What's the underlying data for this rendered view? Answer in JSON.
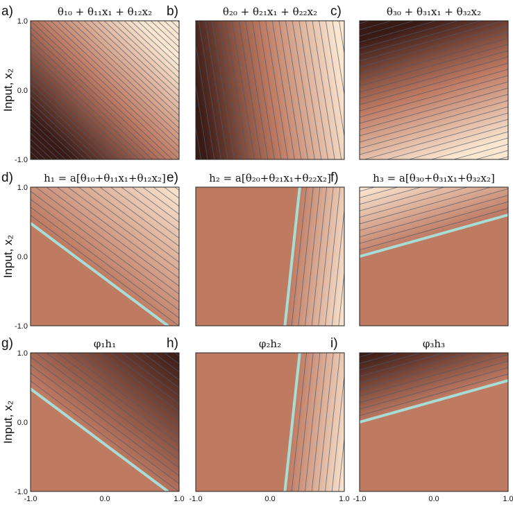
{
  "figure": {
    "y_axis_label": "Input, x₂",
    "tick_labels": {
      "neg": "-1.0",
      "zero": "0.0",
      "pos": "1.0"
    },
    "colors": {
      "dark": "#3a1a14",
      "mid": "#bf7a62",
      "light": "#fbe6d0",
      "contour": "#4a5a70",
      "boundary": "#a8ddd6"
    },
    "panels": [
      {
        "label": "a)",
        "title": "θ₁₀ + θ₁₁x₁ + θ₁₂x₂",
        "a": 1.0,
        "b": 1.0,
        "mode": "linear"
      },
      {
        "label": "b)",
        "title": "θ₂₀ + θ₂₁x₁ + θ₂₂x₂",
        "a": 1.0,
        "b": 0.15,
        "mode": "linear"
      },
      {
        "label": "c)",
        "title": "θ₃₀ + θ₃₁x₁ + θ₃₂x₂",
        "a": 0.3,
        "b": -1.0,
        "mode": "linear"
      },
      {
        "label": "d)",
        "title": "h₁ = a[θ₁₀+θ₁₁x₁+θ₁₂x₂]",
        "a": 1.0,
        "b": 1.25,
        "c": 0.4,
        "mode": "relu"
      },
      {
        "label": "e)",
        "title": "h₂ = a[θ₂₀+θ₂₁x₁+θ₂₂x₂]",
        "a": 1.0,
        "b": -0.1,
        "c": -0.3,
        "mode": "relu"
      },
      {
        "label": "f)",
        "title": "h₃ = a[θ₃₀+θ₃₁x₁+θ₃₂x₂]",
        "a": -0.3,
        "b": 1.0,
        "c": -0.3,
        "mode": "relu"
      },
      {
        "label": "g)",
        "title": "φ₁h₁",
        "a": 1.0,
        "b": 1.25,
        "c": 0.4,
        "mode": "relu",
        "sign": -1
      },
      {
        "label": "h)",
        "title": "φ₂h₂",
        "a": 1.0,
        "b": -0.1,
        "c": -0.3,
        "mode": "relu",
        "sign": 1
      },
      {
        "label": "i)",
        "title": "φ₃h₃",
        "a": -0.3,
        "b": 1.0,
        "c": -0.3,
        "mode": "relu",
        "sign": -1
      }
    ]
  }
}
